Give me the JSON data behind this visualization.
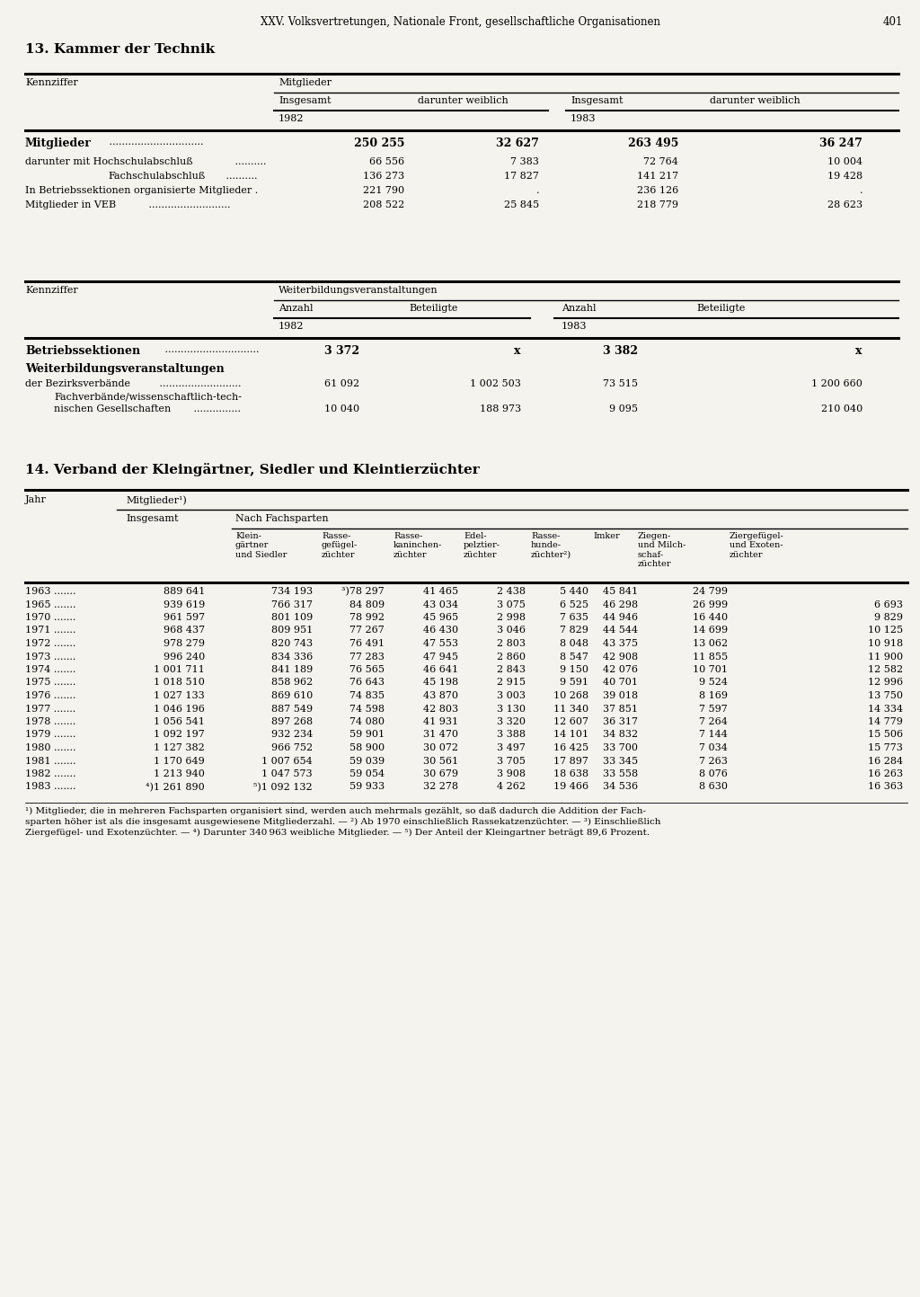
{
  "page_header": "XXV. Volksvertretungen, Nationale Front, gesellschaftliche Organisationen",
  "page_number": "401",
  "section13_title": "13. Kammer der Technik",
  "section14_title": "14. Verband der Kleingärtner, Siedler und Kleintierzüchter",
  "footnotes_14": [
    "¹) Mitglieder, die in mehreren Fachsparten organisiert sind, werden auch mehrmals gezählt, so daß dadurch die Addition der Fach-",
    "sparten höher ist als die insgesamt ausgewiesene Mitgliederzahl. — ²) Ab 1970 einschließlich Rassekatzenzüchter. — ³) Einschließlich",
    "Ziergefügel- und Exotenzüchter. — ⁴) Darunter 340 963 weibliche Mitglieder. — ⁵) Der Anteil der Kleingartner beträgt 89,6 Prozent."
  ],
  "bg_color": "#f4f3ee"
}
